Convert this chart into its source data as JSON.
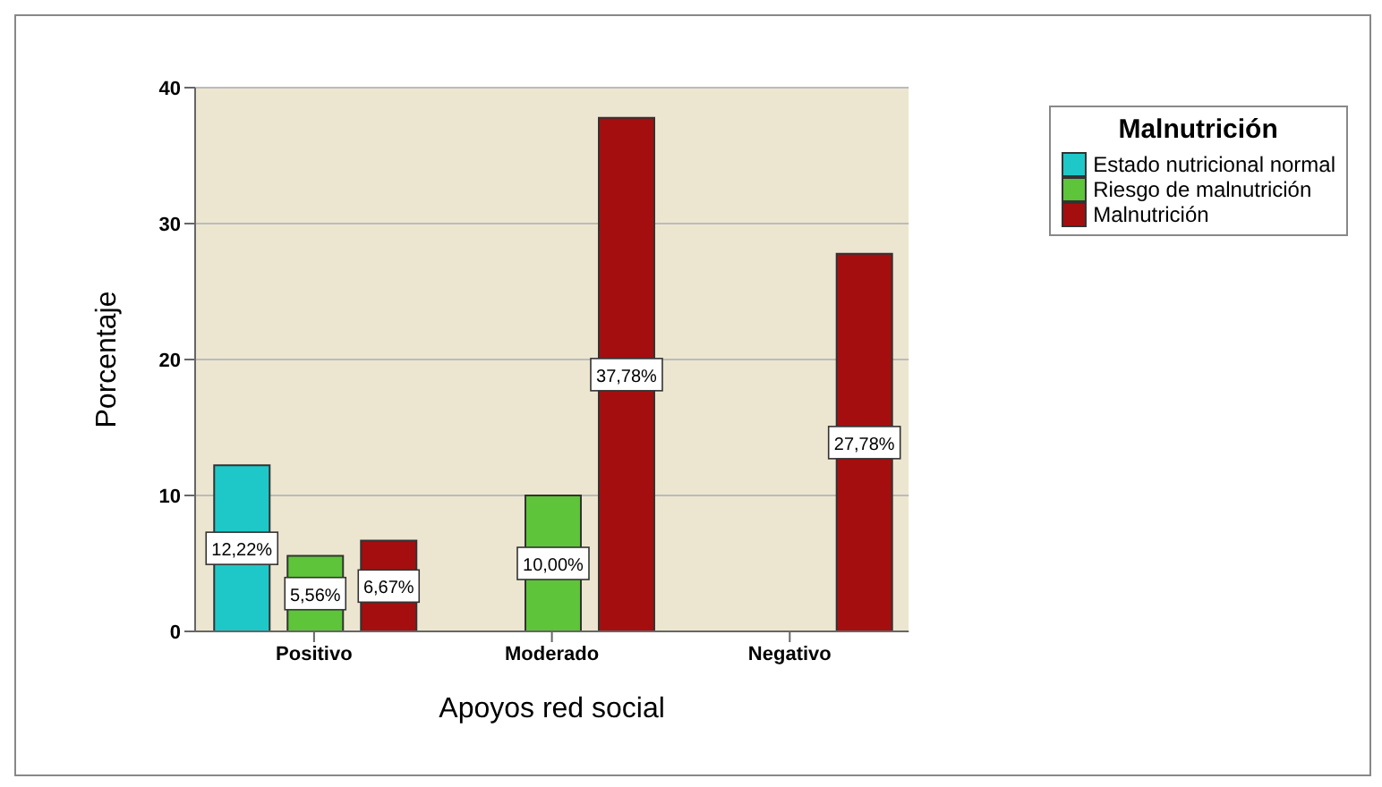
{
  "chart_data": {
    "type": "bar",
    "xlabel": "Apoyos red social",
    "ylabel": "Porcentaje",
    "legend_title": "Malnutrición",
    "categories": [
      "Positivo",
      "Moderado",
      "Negativo"
    ],
    "series": [
      {
        "name": "Estado nutricional normal",
        "color": "#1fc8c8",
        "values": [
          12.22,
          null,
          null
        ],
        "value_labels": [
          "12,22%",
          null,
          null
        ]
      },
      {
        "name": "Riesgo de malnutrición",
        "color": "#5ec43a",
        "values": [
          5.56,
          10.0,
          null
        ],
        "value_labels": [
          "5,56%",
          "10,00%",
          null
        ]
      },
      {
        "name": "Malnutrición",
        "color": "#a50e0e",
        "values": [
          6.67,
          37.78,
          27.78
        ],
        "value_labels": [
          "6,67%",
          "37,78%",
          "27,78%"
        ]
      }
    ],
    "ylim": [
      0,
      40
    ],
    "yticks": [
      0,
      10,
      20,
      30,
      40
    ],
    "grid": "y",
    "legend": "top right"
  }
}
